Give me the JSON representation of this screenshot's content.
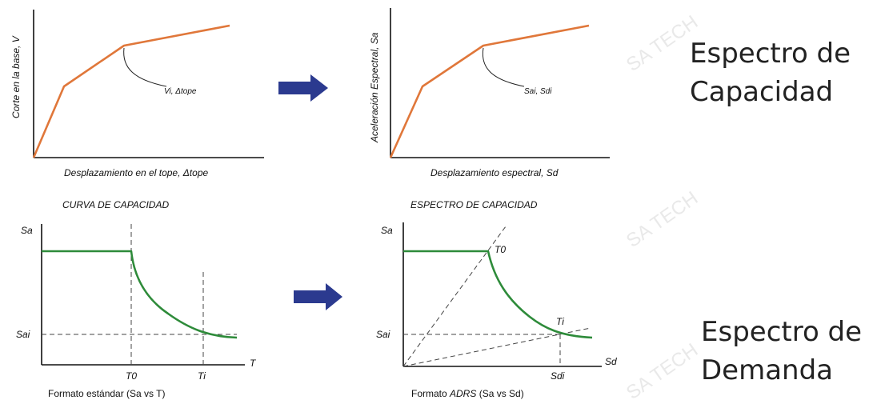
{
  "colors": {
    "capacity_curve": "#e0773a",
    "demand_curve": "#2e8b3a",
    "arrow": "#2b3a8f"
  },
  "watermark": "SA TECH",
  "top_left": {
    "ylabel": "Corte en la base, V",
    "point_label": "Vi, Δtope",
    "xlabel": "Desplazamiento en el tope, Δtope",
    "caption": "CURVA DE CAPACIDAD"
  },
  "top_right": {
    "ylabel": "Aceleración Espectral, Sa",
    "point_label": "Sai, Sdi",
    "xlabel": "Desplazamiento espectral, Sd",
    "caption": "ESPECTRO DE CAPACIDAD"
  },
  "bottom_left": {
    "ylabel": "Sa",
    "sa_i": "Sai",
    "xlabel": "T",
    "t0": "T0",
    "ti": "Ti",
    "caption": "Formato estándar (Sa vs T)"
  },
  "bottom_right": {
    "ylabel": "Sa",
    "sa_i": "Sai",
    "t0": "T0",
    "ti": "Ti",
    "xlabel": "Sd",
    "sd_i": "Sdi",
    "caption_pre": "Formato ",
    "caption_em": "ADRS",
    "caption_post": " (Sa vs Sd)"
  },
  "right_text": {
    "capacity_line1": "Espectro de",
    "capacity_line2": "Capacidad",
    "demand_line1": "Espectro de",
    "demand_line2": "Demanda"
  }
}
